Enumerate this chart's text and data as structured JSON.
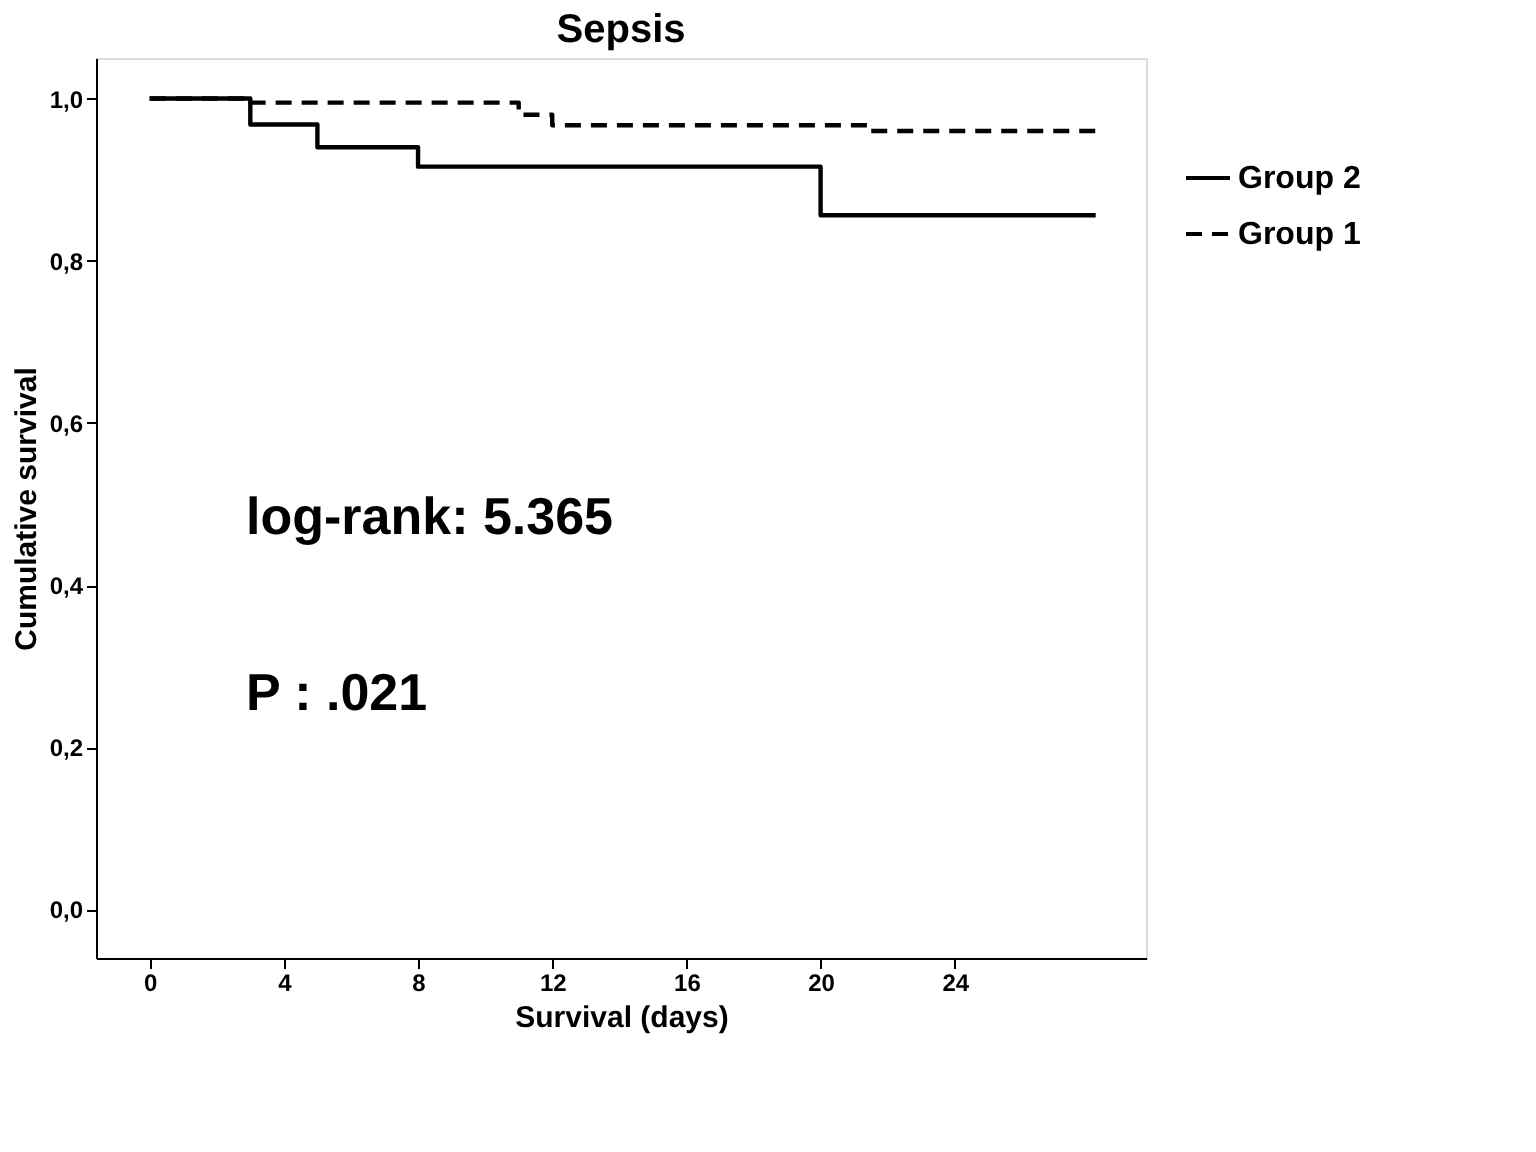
{
  "chart_data": {
    "type": "step",
    "title": "Sepsis",
    "xlabel": "Survival (days)",
    "ylabel": "Cumulative survival",
    "annotations": [
      "log-rank: 5.365",
      "P : .021"
    ],
    "xlim": [
      -1.6,
      29.7
    ],
    "xticks": [
      0,
      4,
      8,
      12,
      16,
      20,
      24
    ],
    "ylim": [
      -0.06,
      1.05
    ],
    "yticks": [
      {
        "value": 0.0,
        "label": "0,0"
      },
      {
        "value": 0.2,
        "label": "0,2"
      },
      {
        "value": 0.4,
        "label": "0,4"
      },
      {
        "value": 0.6,
        "label": "0,6"
      },
      {
        "value": 0.8,
        "label": "0,8"
      },
      {
        "value": 1.0,
        "label": "1,0"
      }
    ],
    "grid": false,
    "legend": "right",
    "series": [
      {
        "name": "Group 2",
        "color": "#000000",
        "line_style": "solid",
        "x": [
          0,
          3,
          5,
          8,
          20,
          28.2
        ],
        "values": [
          1.0,
          0.968,
          0.94,
          0.916,
          0.856,
          0.856
        ]
      },
      {
        "name": "Group 1",
        "color": "#000000",
        "line_style": "dashed",
        "x": [
          0,
          3,
          11,
          12,
          21.5,
          28.2
        ],
        "values": [
          1.0,
          0.995,
          0.98,
          0.967,
          0.96,
          0.96
        ]
      }
    ]
  }
}
